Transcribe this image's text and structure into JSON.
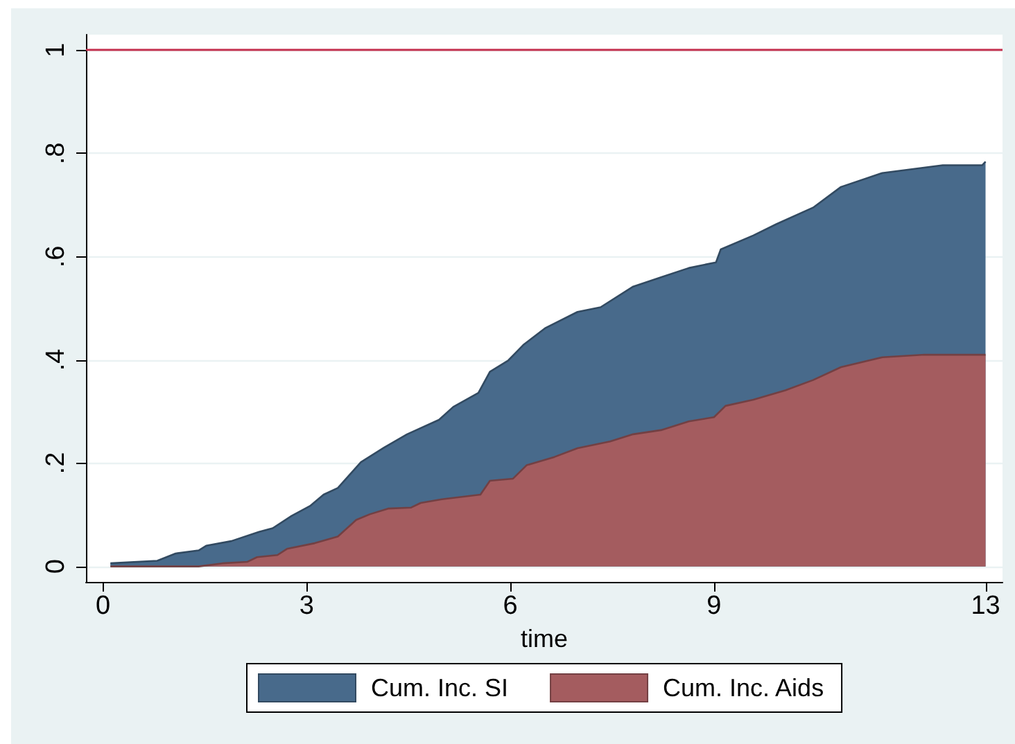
{
  "chart_data": {
    "type": "area",
    "xlabel": "time",
    "series": [
      {
        "name": "Cum. Inc. SI",
        "color": "#486a8b",
        "x": [
          0.11,
          0.8,
          1.07,
          1.41,
          1.52,
          1.89,
          2.3,
          2.5,
          2.78,
          3.05,
          3.25,
          3.46,
          3.8,
          4.14,
          4.48,
          4.95,
          5.16,
          5.53,
          5.7,
          5.97,
          6.2,
          6.52,
          6.99,
          7.33,
          7.81,
          8.22,
          8.63,
          9.03,
          9.1,
          9.58,
          9.92,
          10.46,
          10.87,
          11.48,
          12.37,
          12.95,
          13
        ],
        "values": [
          0.006,
          0.011,
          0.025,
          0.031,
          0.04,
          0.049,
          0.067,
          0.074,
          0.098,
          0.117,
          0.139,
          0.152,
          0.202,
          0.23,
          0.256,
          0.284,
          0.309,
          0.336,
          0.377,
          0.399,
          0.43,
          0.462,
          0.493,
          0.502,
          0.542,
          0.56,
          0.578,
          0.589,
          0.614,
          0.641,
          0.663,
          0.695,
          0.735,
          0.762,
          0.777,
          0.777,
          0.784
        ]
      },
      {
        "name": "Cum. Inc. Aids",
        "color": "#a45c5f",
        "x": [
          0.11,
          1.41,
          1.76,
          2.13,
          2.27,
          2.57,
          2.71,
          3.12,
          3.46,
          3.73,
          3.93,
          4.2,
          4.54,
          4.68,
          4.99,
          5.56,
          5.7,
          6.04,
          6.24,
          6.65,
          6.99,
          7.47,
          7.81,
          8.22,
          8.63,
          9,
          9.17,
          9.58,
          10.05,
          10.46,
          10.87,
          11.48,
          12.1,
          13
        ],
        "values": [
          0,
          0,
          0.006,
          0.009,
          0.018,
          0.022,
          0.034,
          0.045,
          0.058,
          0.09,
          0.101,
          0.112,
          0.114,
          0.123,
          0.13,
          0.139,
          0.166,
          0.17,
          0.196,
          0.212,
          0.229,
          0.242,
          0.256,
          0.264,
          0.281,
          0.289,
          0.311,
          0.323,
          0.341,
          0.361,
          0.386,
          0.405,
          0.41,
          0.41
        ]
      }
    ],
    "xlim": [
      -0.25,
      13.25
    ],
    "xticks": [
      0,
      3,
      6,
      9,
      13
    ],
    "ylim": [
      -0.03,
      1.03
    ],
    "yticks": [
      0,
      {
        "value": 0.2,
        "label": ".2"
      },
      {
        "value": 0.4,
        "label": ".4"
      },
      {
        "value": 0.6,
        "label": ".6"
      },
      {
        "value": 0.8,
        "label": ".8"
      },
      1
    ],
    "grid": "y",
    "legend": "bottom",
    "ref_lines": [
      {
        "axis": "y",
        "value": 1,
        "color": "#c4304e"
      }
    ]
  }
}
